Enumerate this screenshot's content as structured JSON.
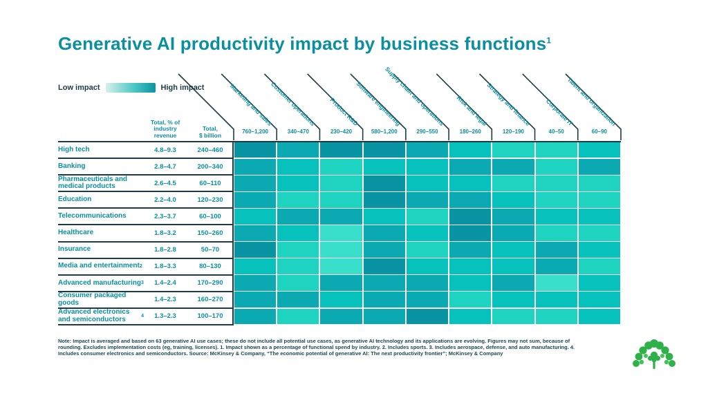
{
  "title": {
    "text": "Generative AI productivity impact by business functions",
    "superscript": "1"
  },
  "legend": {
    "low_label": "Low impact",
    "high_label": "High impact"
  },
  "colors": {
    "accent_teal": "#0A8F9E",
    "dark_line": "#1C3B46",
    "scale_low_to_high": [
      "#3ADFCB",
      "#1FD3C1",
      "#07C1BC",
      "#0BA9B2",
      "#0894A3"
    ],
    "legend_gradient_start": "#D8F0EC",
    "legend_gradient_end": "#0A93A3",
    "logo_green": "#2FB14A"
  },
  "table": {
    "value_headers": [
      {
        "lines": "Total, % of\nindustry\nrevenue"
      },
      {
        "lines": "Total,\n$ billion"
      }
    ]
  },
  "chart_data": {
    "type": "heatmap",
    "title": "Generative AI productivity impact by business functions",
    "legend": {
      "low": "Low impact",
      "high": "High impact"
    },
    "scale_note": "impact_levels: 1 = low impact (lightest turquoise) to 5 = high impact (darkest teal)",
    "columns": [
      {
        "label": "Marketing and sales",
        "total_usd_billion": "760–1,200"
      },
      {
        "label": "Customer operations",
        "total_usd_billion": "340–470"
      },
      {
        "label": "Product R&D",
        "total_usd_billion": "230–420"
      },
      {
        "label": "Software engineering",
        "total_usd_billion": "580–1,200"
      },
      {
        "label": "Supply chain and operations",
        "total_usd_billion": "290–550"
      },
      {
        "label": "Risk and legal",
        "total_usd_billion": "180–260"
      },
      {
        "label": "Strategy and finance",
        "total_usd_billion": "120–190"
      },
      {
        "label": "Corporate IT",
        "total_usd_billion": "40–50"
      },
      {
        "label": "Talent and organization",
        "total_usd_billion": "60–90"
      }
    ],
    "rows": [
      {
        "label": "High tech",
        "superscript": "",
        "pct_of_industry_revenue": "4.8–9.3",
        "total_usd_billion": "240–460",
        "impact_levels": [
          5,
          4,
          5,
          5,
          4,
          3,
          2,
          2,
          3
        ]
      },
      {
        "label": "Banking",
        "superscript": "",
        "pct_of_industry_revenue": "2.8–4.7",
        "total_usd_billion": "200–340",
        "impact_levels": [
          4,
          3,
          2,
          3,
          3,
          4,
          4,
          2,
          4
        ]
      },
      {
        "label": "Pharmaceuticals and medical products",
        "superscript": "",
        "pct_of_industry_revenue": "2.6–4.5",
        "total_usd_billion": "60–110",
        "impact_levels": [
          4,
          3,
          2,
          5,
          3,
          3,
          2,
          2,
          2
        ]
      },
      {
        "label": "Education",
        "superscript": "",
        "pct_of_industry_revenue": "2.2–4.0",
        "total_usd_billion": "120–230",
        "impact_levels": [
          4,
          2,
          2,
          5,
          4,
          4,
          3,
          2,
          2
        ]
      },
      {
        "label": "Telecommunications",
        "superscript": "",
        "pct_of_industry_revenue": "2.3–3.7",
        "total_usd_billion": "60–100",
        "impact_levels": [
          3,
          4,
          4,
          3,
          2,
          5,
          4,
          3,
          3
        ]
      },
      {
        "label": "Healthcare",
        "superscript": "",
        "pct_of_industry_revenue": "1.8–3.2",
        "total_usd_billion": "150–260",
        "impact_levels": [
          4,
          3,
          1,
          4,
          3,
          5,
          4,
          2,
          2
        ]
      },
      {
        "label": "Insurance",
        "superscript": "",
        "pct_of_industry_revenue": "1.8–2.8",
        "total_usd_billion": "50–70",
        "impact_levels": [
          5,
          2,
          1,
          4,
          2,
          4,
          3,
          4,
          3
        ]
      },
      {
        "label": "Media and entertainment",
        "superscript": "2",
        "pct_of_industry_revenue": "1.8–3.3",
        "total_usd_billion": "80–130",
        "impact_levels": [
          3,
          2,
          1,
          5,
          3,
          3,
          3,
          4,
          2
        ]
      },
      {
        "label": "Advanced manufacturing",
        "superscript": "3",
        "pct_of_industry_revenue": "1.4–2.4",
        "total_usd_billion": "170–290",
        "impact_levels": [
          4,
          2,
          4,
          4,
          4,
          3,
          4,
          1,
          3
        ]
      },
      {
        "label": "Consumer packaged goods",
        "superscript": "",
        "pct_of_industry_revenue": "1.4–2.3",
        "total_usd_billion": "160–270",
        "impact_levels": [
          4,
          4,
          3,
          4,
          4,
          2,
          3,
          3,
          3
        ]
      },
      {
        "label": "Advanced electronics and semiconductors",
        "superscript": "4",
        "pct_of_industry_revenue": "1.3–2.3",
        "total_usd_billion": "100–170",
        "impact_levels": [
          4,
          2,
          4,
          4,
          5,
          3,
          2,
          2,
          3
        ]
      }
    ]
  },
  "footnote": {
    "text": "Note: Impact is averaged and based on 63 generative AI use cases; these do not include all potential use cases, as generative AI technology and its applications are evolving. Figures may not sum, because of rounding. Excludes implementation costs (eg, training, licenses). 1. Impact shown as a percentage of functional spend by industry. 2. Includes sports. 3. Includes aerospace, defense, and auto manufacturing. 4. Includes consumer electronics and semiconductors. Source: McKinsey & Company, “The economic potential of generative AI: The next productivity frontier”; McKinsey & Company"
  },
  "logo": {
    "name": "green-plant-arch-logo"
  }
}
